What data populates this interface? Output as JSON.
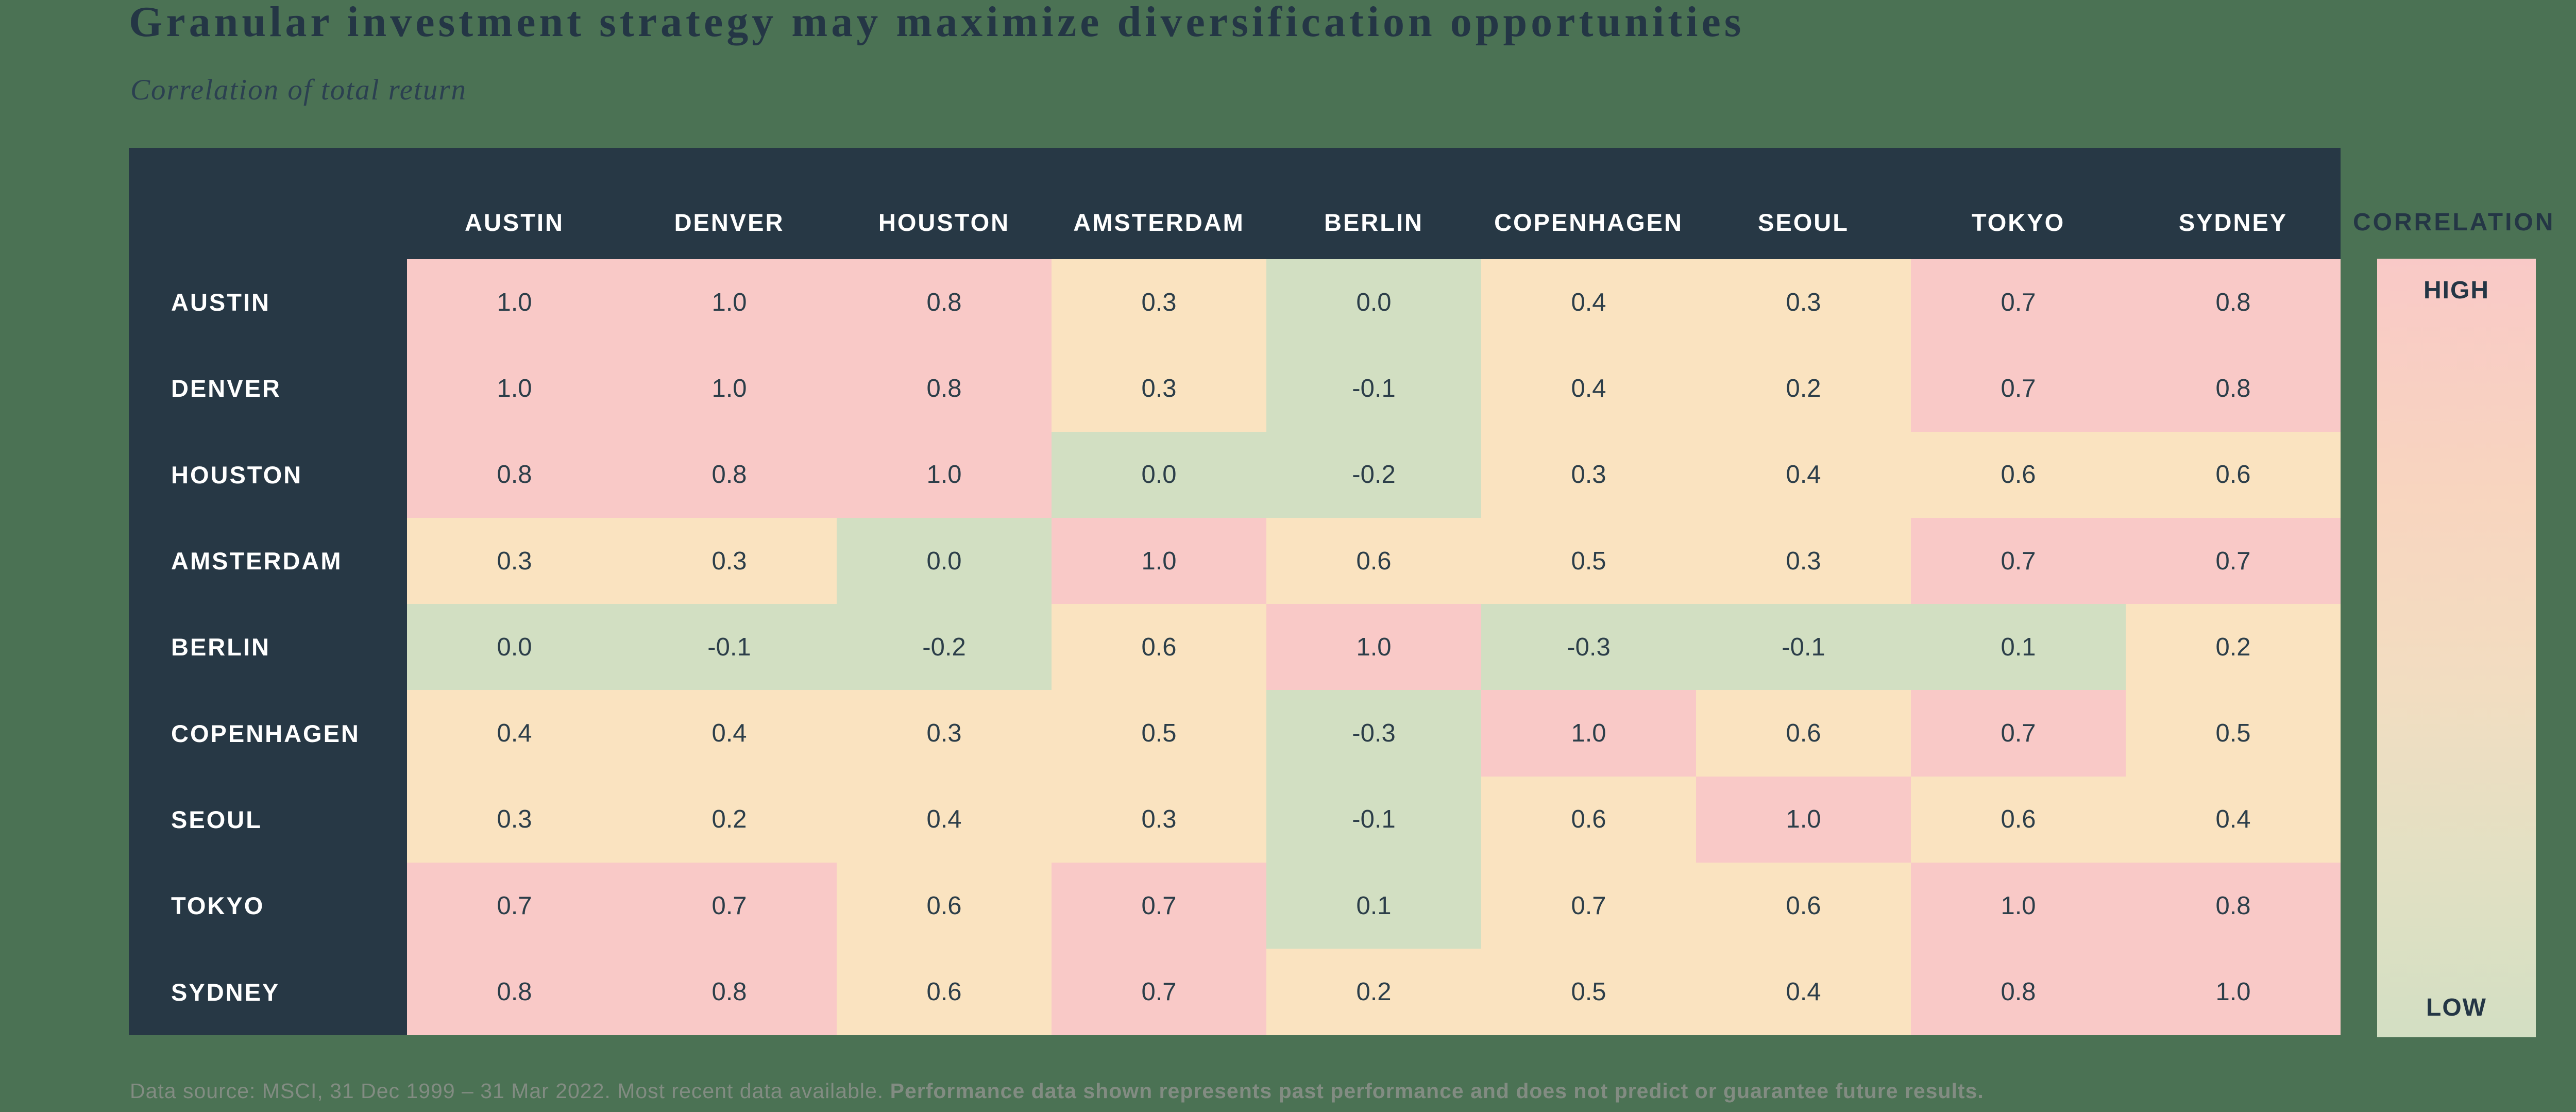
{
  "header": {
    "title": "Granular investment strategy may maximize diversification opportunities",
    "subtitle": "Correlation of total return"
  },
  "chart_data": {
    "type": "heatmap",
    "title": "Granular investment strategy may maximize diversification opportunities",
    "subtitle": "Correlation of total return",
    "x_categories": [
      "AUSTIN",
      "DENVER",
      "HOUSTON",
      "AMSTERDAM",
      "BERLIN",
      "COPENHAGEN",
      "SEOUL",
      "TOKYO",
      "SYDNEY"
    ],
    "y_categories": [
      "AUSTIN",
      "DENVER",
      "HOUSTON",
      "AMSTERDAM",
      "BERLIN",
      "COPENHAGEN",
      "SEOUL",
      "TOKYO",
      "SYDNEY"
    ],
    "values": [
      [
        1.0,
        1.0,
        0.8,
        0.3,
        0.0,
        0.4,
        0.3,
        0.7,
        0.8
      ],
      [
        1.0,
        1.0,
        0.8,
        0.3,
        -0.1,
        0.4,
        0.2,
        0.7,
        0.8
      ],
      [
        0.8,
        0.8,
        1.0,
        0.0,
        -0.2,
        0.3,
        0.4,
        0.6,
        0.6
      ],
      [
        0.3,
        0.3,
        0.0,
        1.0,
        0.6,
        0.5,
        0.3,
        0.7,
        0.7
      ],
      [
        0.0,
        -0.1,
        -0.2,
        0.6,
        1.0,
        -0.3,
        -0.1,
        0.1,
        0.2
      ],
      [
        0.4,
        0.4,
        0.3,
        0.5,
        -0.3,
        1.0,
        0.6,
        0.7,
        0.5
      ],
      [
        0.3,
        0.2,
        0.4,
        0.3,
        -0.1,
        0.6,
        1.0,
        0.6,
        0.4
      ],
      [
        0.7,
        0.7,
        0.6,
        0.7,
        0.1,
        0.7,
        0.6,
        1.0,
        0.8
      ],
      [
        0.8,
        0.8,
        0.6,
        0.7,
        0.2,
        0.5,
        0.4,
        0.8,
        1.0
      ]
    ],
    "cell_colors": [
      [
        "p",
        "p",
        "p",
        "t",
        "g",
        "t",
        "t",
        "p",
        "p"
      ],
      [
        "p",
        "p",
        "p",
        "t",
        "g",
        "t",
        "t",
        "p",
        "p"
      ],
      [
        "p",
        "p",
        "p",
        "g",
        "g",
        "t",
        "t",
        "t",
        "t"
      ],
      [
        "t",
        "t",
        "g",
        "p",
        "t",
        "t",
        "t",
        "p",
        "p"
      ],
      [
        "g",
        "g",
        "g",
        "t",
        "p",
        "g",
        "g",
        "g",
        "t"
      ],
      [
        "t",
        "t",
        "t",
        "t",
        "g",
        "p",
        "t",
        "p",
        "t"
      ],
      [
        "t",
        "t",
        "t",
        "t",
        "g",
        "t",
        "p",
        "t",
        "t"
      ],
      [
        "p",
        "p",
        "t",
        "p",
        "g",
        "t",
        "t",
        "p",
        "p"
      ],
      [
        "p",
        "p",
        "t",
        "p",
        "t",
        "t",
        "t",
        "p",
        "p"
      ]
    ],
    "legend": {
      "title": "CORRELATION",
      "high_label": "HIGH",
      "low_label": "LOW",
      "position": "right"
    },
    "grid": false
  },
  "palette": {
    "p": "#f9c9c7",
    "t": "#fae3c0",
    "g": "#d2dfc2",
    "header_navy": "#273845",
    "page_background": "#4b7254",
    "value_text": "#2c3e49",
    "label_text": "#ffffff",
    "title_text": "#243645",
    "footnote_text": "#828c82",
    "legend_gradient_top": "#f9c9c7",
    "legend_gradient_mid": "#f2ddc1",
    "legend_gradient_bottom": "#d3dfc3"
  },
  "legend": {
    "title": "CORRELATION",
    "high_label": "HIGH",
    "low_label": "LOW"
  },
  "footer": {
    "note_regular": "Data source: MSCI, 31 Dec 1999 – 31 Mar 2022. Most recent data available. ",
    "note_bold": "Performance data shown represents past performance and does not predict or guarantee future results."
  }
}
